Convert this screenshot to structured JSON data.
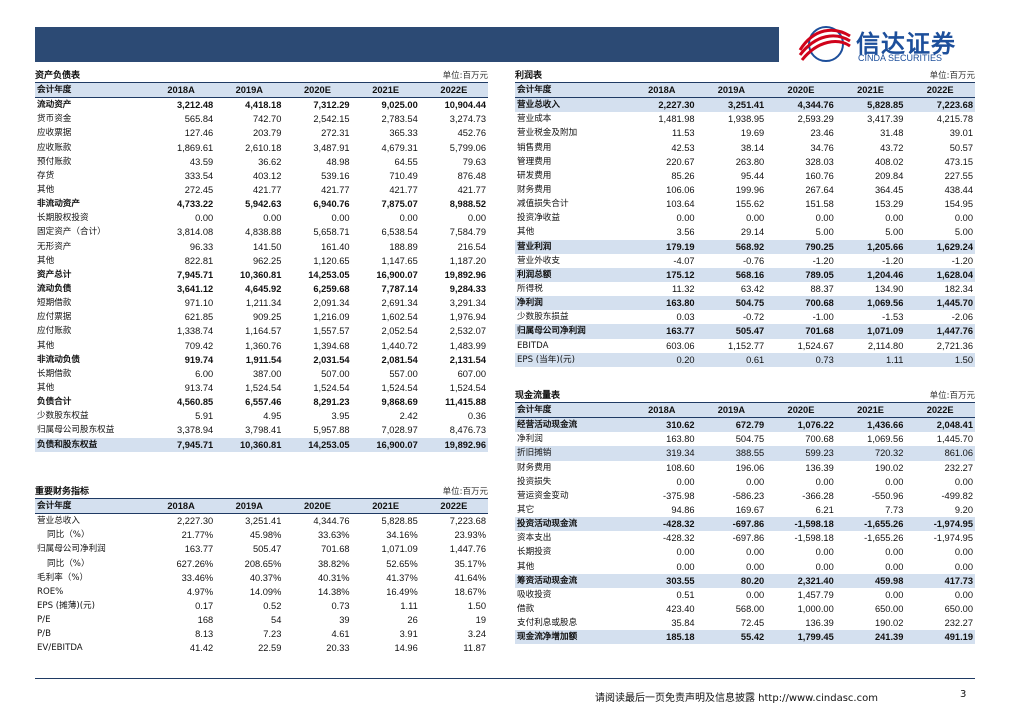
{
  "logo": {
    "cn": "信达证券",
    "en": "CINDA SECURITIES"
  },
  "balance": {
    "title": "资产负债表",
    "unit": "单位:百万元",
    "header": [
      "会计年度",
      "2018A",
      "2019A",
      "2020E",
      "2021E",
      "2022E"
    ],
    "rows": [
      [
        "流动资产",
        "3,212.48",
        "4,418.18",
        "7,312.29",
        "9,025.00",
        "10,904.44"
      ],
      [
        "货币资金",
        "565.84",
        "742.70",
        "2,542.15",
        "2,783.54",
        "3,274.73"
      ],
      [
        "应收票据",
        "127.46",
        "203.79",
        "272.31",
        "365.33",
        "452.76"
      ],
      [
        "应收账款",
        "1,869.61",
        "2,610.18",
        "3,487.91",
        "4,679.31",
        "5,799.06"
      ],
      [
        "预付账款",
        "43.59",
        "36.62",
        "48.98",
        "64.55",
        "79.63"
      ],
      [
        "存货",
        "333.54",
        "403.12",
        "539.16",
        "710.49",
        "876.48"
      ],
      [
        "其他",
        "272.45",
        "421.77",
        "421.77",
        "421.77",
        "421.77"
      ],
      [
        "非流动资产",
        "4,733.22",
        "5,942.63",
        "6,940.76",
        "7,875.07",
        "8,988.52"
      ],
      [
        "长期股权投资",
        "0.00",
        "0.00",
        "0.00",
        "0.00",
        "0.00"
      ],
      [
        "固定资产（合计）",
        "3,814.08",
        "4,838.88",
        "5,658.71",
        "6,538.54",
        "7,584.79"
      ],
      [
        "无形资产",
        "96.33",
        "141.50",
        "161.40",
        "188.89",
        "216.54"
      ],
      [
        "其他",
        "822.81",
        "962.25",
        "1,120.65",
        "1,147.65",
        "1,187.20"
      ],
      [
        "资产总计",
        "7,945.71",
        "10,360.81",
        "14,253.05",
        "16,900.07",
        "19,892.96"
      ],
      [
        "流动负债",
        "3,641.12",
        "4,645.92",
        "6,259.68",
        "7,787.14",
        "9,284.33"
      ],
      [
        "短期借款",
        "971.10",
        "1,211.34",
        "2,091.34",
        "2,691.34",
        "3,291.34"
      ],
      [
        "应付票据",
        "621.85",
        "909.25",
        "1,216.09",
        "1,602.54",
        "1,976.94"
      ],
      [
        "应付账款",
        "1,338.74",
        "1,164.57",
        "1,557.57",
        "2,052.54",
        "2,532.07"
      ],
      [
        "其他",
        "709.42",
        "1,360.76",
        "1,394.68",
        "1,440.72",
        "1,483.99"
      ],
      [
        "非流动负债",
        "919.74",
        "1,911.54",
        "2,031.54",
        "2,081.54",
        "2,131.54"
      ],
      [
        "长期借款",
        "6.00",
        "387.00",
        "507.00",
        "557.00",
        "607.00"
      ],
      [
        "其他",
        "913.74",
        "1,524.54",
        "1,524.54",
        "1,524.54",
        "1,524.54"
      ],
      [
        "负债合计",
        "4,560.85",
        "6,557.46",
        "8,291.23",
        "9,868.69",
        "11,415.88"
      ],
      [
        "少数股东权益",
        "5.91",
        "4.95",
        "3.95",
        "2.42",
        "0.36"
      ],
      [
        "归属母公司股东权益",
        "3,378.94",
        "3,798.41",
        "5,957.88",
        "7,028.97",
        "8,476.73"
      ],
      [
        "负债和股东权益",
        "7,945.71",
        "10,360.81",
        "14,253.05",
        "16,900.07",
        "19,892.96"
      ]
    ]
  },
  "ratios": {
    "title": "重要财务指标",
    "unit": "单位:百万元",
    "header": [
      "会计年度",
      "2018A",
      "2019A",
      "2020E",
      "2021E",
      "2022E"
    ],
    "rows": [
      [
        "营业总收入",
        "2,227.30",
        "3,251.41",
        "4,344.76",
        "5,828.85",
        "7,223.68"
      ],
      [
        "同比（%）",
        "21.77%",
        "45.98%",
        "33.63%",
        "34.16%",
        "23.93%"
      ],
      [
        "归属母公司净利润",
        "163.77",
        "505.47",
        "701.68",
        "1,071.09",
        "1,447.76"
      ],
      [
        "同比（%）",
        "627.26%",
        "208.65%",
        "38.82%",
        "52.65%",
        "35.17%"
      ],
      [
        "毛利率（%）",
        "33.46%",
        "40.37%",
        "40.31%",
        "41.37%",
        "41.64%"
      ],
      [
        "ROE%",
        "4.97%",
        "14.09%",
        "14.38%",
        "16.49%",
        "18.67%"
      ],
      [
        "EPS (摊薄)(元)",
        "0.17",
        "0.52",
        "0.73",
        "1.11",
        "1.50"
      ],
      [
        "P/E",
        "168",
        "54",
        "39",
        "26",
        "19"
      ],
      [
        "P/B",
        "8.13",
        "7.23",
        "4.61",
        "3.91",
        "3.24"
      ],
      [
        "EV/EBITDA",
        "41.42",
        "22.59",
        "20.33",
        "14.96",
        "11.87"
      ]
    ]
  },
  "income": {
    "title": "利润表",
    "unit": "单位:百万元",
    "header": [
      "会计年度",
      "2018A",
      "2019A",
      "2020E",
      "2021E",
      "2022E"
    ],
    "rows": [
      [
        "营业总收入",
        "2,227.30",
        "3,251.41",
        "4,344.76",
        "5,828.85",
        "7,223.68"
      ],
      [
        "营业成本",
        "1,481.98",
        "1,938.95",
        "2,593.29",
        "3,417.39",
        "4,215.78"
      ],
      [
        "营业税金及附加",
        "11.53",
        "19.69",
        "23.46",
        "31.48",
        "39.01"
      ],
      [
        "销售费用",
        "42.53",
        "38.14",
        "34.76",
        "43.72",
        "50.57"
      ],
      [
        "管理费用",
        "220.67",
        "263.80",
        "328.03",
        "408.02",
        "473.15"
      ],
      [
        "研发费用",
        "85.26",
        "95.44",
        "160.76",
        "209.84",
        "227.55"
      ],
      [
        "财务费用",
        "106.06",
        "199.96",
        "267.64",
        "364.45",
        "438.44"
      ],
      [
        "减值损失合计",
        "103.64",
        "155.62",
        "151.58",
        "153.29",
        "154.95"
      ],
      [
        "投资净收益",
        "0.00",
        "0.00",
        "0.00",
        "0.00",
        "0.00"
      ],
      [
        "其他",
        "3.56",
        "29.14",
        "5.00",
        "5.00",
        "5.00"
      ],
      [
        "营业利润",
        "179.19",
        "568.92",
        "790.25",
        "1,205.66",
        "1,629.24"
      ],
      [
        "营业外收支",
        "-4.07",
        "-0.76",
        "-1.20",
        "-1.20",
        "-1.20"
      ],
      [
        "利润总额",
        "175.12",
        "568.16",
        "789.05",
        "1,204.46",
        "1,628.04"
      ],
      [
        "所得税",
        "11.32",
        "63.42",
        "88.37",
        "134.90",
        "182.34"
      ],
      [
        "净利润",
        "163.80",
        "504.75",
        "700.68",
        "1,069.56",
        "1,445.70"
      ],
      [
        "少数股东损益",
        "0.03",
        "-0.72",
        "-1.00",
        "-1.53",
        "-2.06"
      ],
      [
        "归属母公司净利润",
        "163.77",
        "505.47",
        "701.68",
        "1,071.09",
        "1,447.76"
      ],
      [
        "EBITDA",
        "603.06",
        "1,152.77",
        "1,524.67",
        "2,114.80",
        "2,721.36"
      ],
      [
        "EPS (当年)(元)",
        "0.20",
        "0.61",
        "0.73",
        "1.11",
        "1.50"
      ]
    ]
  },
  "cashflow": {
    "title": "现金流量表",
    "unit": "单位:百万元",
    "header": [
      "会计年度",
      "2018A",
      "2019A",
      "2020E",
      "2021E",
      "2022E"
    ],
    "rows": [
      [
        "经营活动现金流",
        "310.62",
        "672.79",
        "1,076.22",
        "1,436.66",
        "2,048.41"
      ],
      [
        "净利润",
        "163.80",
        "504.75",
        "700.68",
        "1,069.56",
        "1,445.70"
      ],
      [
        "折旧摊销",
        "319.34",
        "388.55",
        "599.23",
        "720.32",
        "861.06"
      ],
      [
        "财务费用",
        "108.60",
        "196.06",
        "136.39",
        "190.02",
        "232.27"
      ],
      [
        "投资损失",
        "0.00",
        "0.00",
        "0.00",
        "0.00",
        "0.00"
      ],
      [
        "营运资金变动",
        "-375.98",
        "-586.23",
        "-366.28",
        "-550.96",
        "-499.82"
      ],
      [
        "其它",
        "94.86",
        "169.67",
        "6.21",
        "7.73",
        "9.20"
      ],
      [
        "投资活动现金流",
        "-428.32",
        "-697.86",
        "-1,598.18",
        "-1,655.26",
        "-1,974.95"
      ],
      [
        "资本支出",
        "-428.32",
        "-697.86",
        "-1,598.18",
        "-1,655.26",
        "-1,974.95"
      ],
      [
        "长期投资",
        "0.00",
        "0.00",
        "0.00",
        "0.00",
        "0.00"
      ],
      [
        "其他",
        "0.00",
        "0.00",
        "0.00",
        "0.00",
        "0.00"
      ],
      [
        "筹资活动现金流",
        "303.55",
        "80.20",
        "2,321.40",
        "459.98",
        "417.73"
      ],
      [
        "吸收投资",
        "0.51",
        "0.00",
        "1,457.79",
        "0.00",
        "0.00"
      ],
      [
        "借款",
        "423.40",
        "568.00",
        "1,000.00",
        "650.00",
        "650.00"
      ],
      [
        "支付利息或股息",
        "35.84",
        "72.45",
        "136.39",
        "190.02",
        "232.27"
      ],
      [
        "现金流净增加额",
        "185.18",
        "55.42",
        "1,799.45",
        "241.39",
        "491.19"
      ]
    ]
  },
  "footer": {
    "disclaimer": "请阅读最后一页免责声明及信息披露 http://www.cindasc.com",
    "page": "3"
  },
  "colors": {
    "banner": "#2c4a74",
    "header_bg": "#d4e0ef",
    "brand": "#1d4f9b",
    "logo_red": "#d0021b"
  }
}
